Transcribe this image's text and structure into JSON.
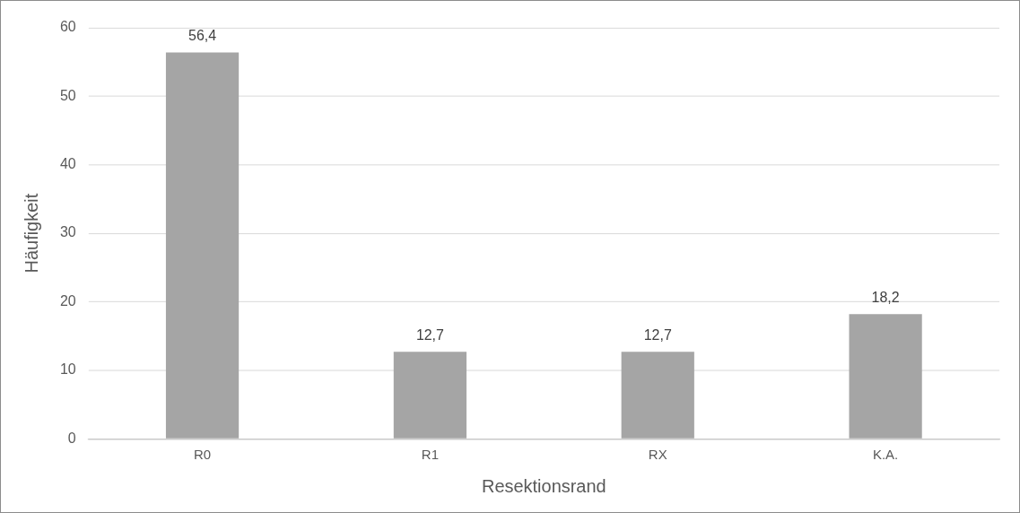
{
  "chart_data": {
    "type": "bar",
    "xlabel": "Resektionsrand",
    "ylabel": "Häufigkeit",
    "categories": [
      "R0",
      "R1",
      "RX",
      "K.A."
    ],
    "values": [
      56.4,
      12.7,
      12.7,
      18.2
    ],
    "value_labels": [
      "56,4",
      "12,7",
      "12,7",
      "18,2"
    ],
    "color": "#a5a5a5",
    "ylim": [
      0,
      60
    ],
    "yticks": [
      0,
      10,
      20,
      30,
      40,
      50,
      60
    ],
    "grid": "y",
    "legend": false
  }
}
